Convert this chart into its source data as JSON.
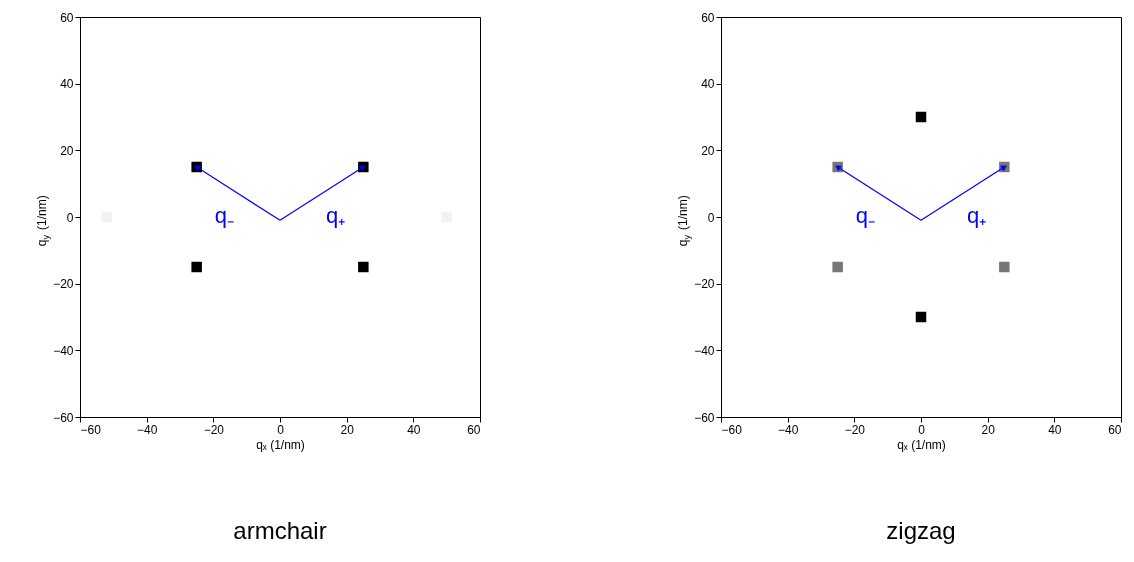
{
  "chart_data": [
    {
      "type": "scatter",
      "title": "armchair",
      "xlabel": "qₓ (1/nm)",
      "ylabel": "q$_{y}$ (1/nm)",
      "xlim": [
        -60,
        60
      ],
      "ylim": [
        -60,
        60
      ],
      "xticks": [
        -60,
        -40,
        -20,
        0,
        20,
        40,
        60
      ],
      "yticks": [
        -60,
        -40,
        -20,
        0,
        20,
        40,
        60
      ],
      "grid": false,
      "series": [
        {
          "marker": "square",
          "x": [
            -25,
            25,
            -25,
            25,
            -52,
            50
          ],
          "values": [
            15,
            15,
            -15,
            -15,
            0,
            0
          ],
          "colors": [
            "#000000",
            "#000000",
            "#000000",
            "#000000",
            "#f2f2f2",
            "#f2f2f2"
          ]
        },
        {
          "type": "line",
          "name": "q₋",
          "marker": "triangle",
          "line_style": "solid",
          "color": "#0000ff",
          "x": [
            0,
            -25
          ],
          "values": [
            -1,
            15
          ]
        },
        {
          "type": "line",
          "name": "q₊",
          "marker": "triangle",
          "line_style": "solid",
          "color": "#0000ff",
          "x": [
            0,
            25
          ],
          "values": [
            -1,
            15
          ]
        }
      ]
    },
    {
      "type": "scatter",
      "title": "zigzag",
      "xlabel": "qₓ (1/nm)",
      "ylabel": "q$_{y}$ (1/nm)",
      "xlim": [
        -60,
        60
      ],
      "ylim": [
        -60,
        60
      ],
      "xticks": [
        -60,
        -40,
        -20,
        0,
        20,
        40,
        60
      ],
      "yticks": [
        -60,
        -40,
        -20,
        0,
        20,
        40,
        60
      ],
      "grid": false,
      "series": [
        {
          "marker": "square",
          "x": [
            0,
            0,
            -25,
            25,
            -25,
            25
          ],
          "values": [
            30,
            -30,
            15,
            15,
            -15,
            -15
          ],
          "colors": [
            "#000000",
            "#000000",
            "#777777",
            "#777777",
            "#777777",
            "#777777"
          ]
        },
        {
          "type": "line",
          "name": "q₋",
          "marker": "triangle",
          "line_style": "solid",
          "color": "#0000ff",
          "x": [
            0,
            -25
          ],
          "values": [
            -1,
            15
          ]
        },
        {
          "type": "line",
          "name": "q₊",
          "marker": "triangle",
          "line_style": "solid",
          "color": "#0000ff",
          "x": [
            0,
            25
          ],
          "values": [
            -1,
            15
          ]
        }
      ]
    }
  ]
}
